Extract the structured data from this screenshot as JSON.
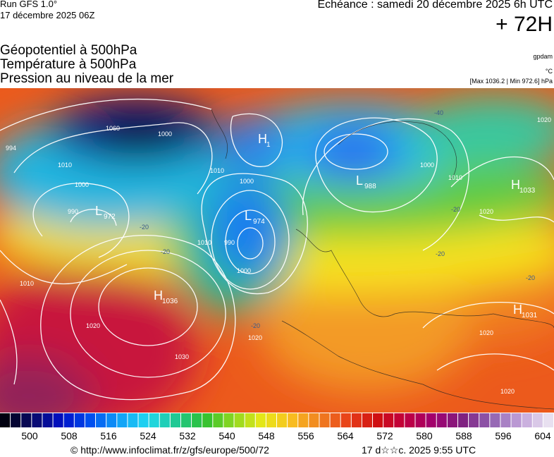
{
  "header": {
    "run": "Run GFS 1.0°",
    "date": "17 décembre 2025 06Z",
    "echeance": "Échéance : samedi 20 décembre 2025 6h UTC",
    "lead": "+ 72H"
  },
  "titles": [
    "Géopotentiel à 500hPa",
    "Température à 500hPa",
    "Pression au niveau de la mer"
  ],
  "units": {
    "geo": "gpdam",
    "temp": "°C",
    "pressure": "[Max 1036.2 | Min 972.6] hPa"
  },
  "centers": [
    {
      "letter": "L",
      "value": "972"
    },
    {
      "letter": "H",
      "value": "1036"
    },
    {
      "letter": "L",
      "value": "974"
    },
    {
      "letter": "H",
      "value": "1"
    },
    {
      "letter": "L",
      "value": "988"
    },
    {
      "letter": "H",
      "value": "1033"
    },
    {
      "letter": "H",
      "value": "1031"
    }
  ],
  "isobar_labels": [
    "994",
    "1010",
    "1000",
    "990",
    "1060",
    "1000",
    "1010",
    "1000",
    "990",
    "1000",
    "1010",
    "1020",
    "1000",
    "1010",
    "1020",
    "1020",
    "1030",
    "1020",
    "1010",
    "1020",
    "1020"
  ],
  "temp_labels": [
    "-40",
    "-20",
    "-20",
    "-20",
    "-20",
    "-20",
    "-20"
  ],
  "colorbar": [
    500,
    508,
    516,
    524,
    532,
    540,
    548,
    556,
    564,
    572,
    580,
    588,
    596,
    604
  ],
  "footer": {
    "source": "© http://www.infoclimat.fr/z/gfs/europe/500/72",
    "time": "17 d☆☆c. 2025  9:55 UTC"
  }
}
